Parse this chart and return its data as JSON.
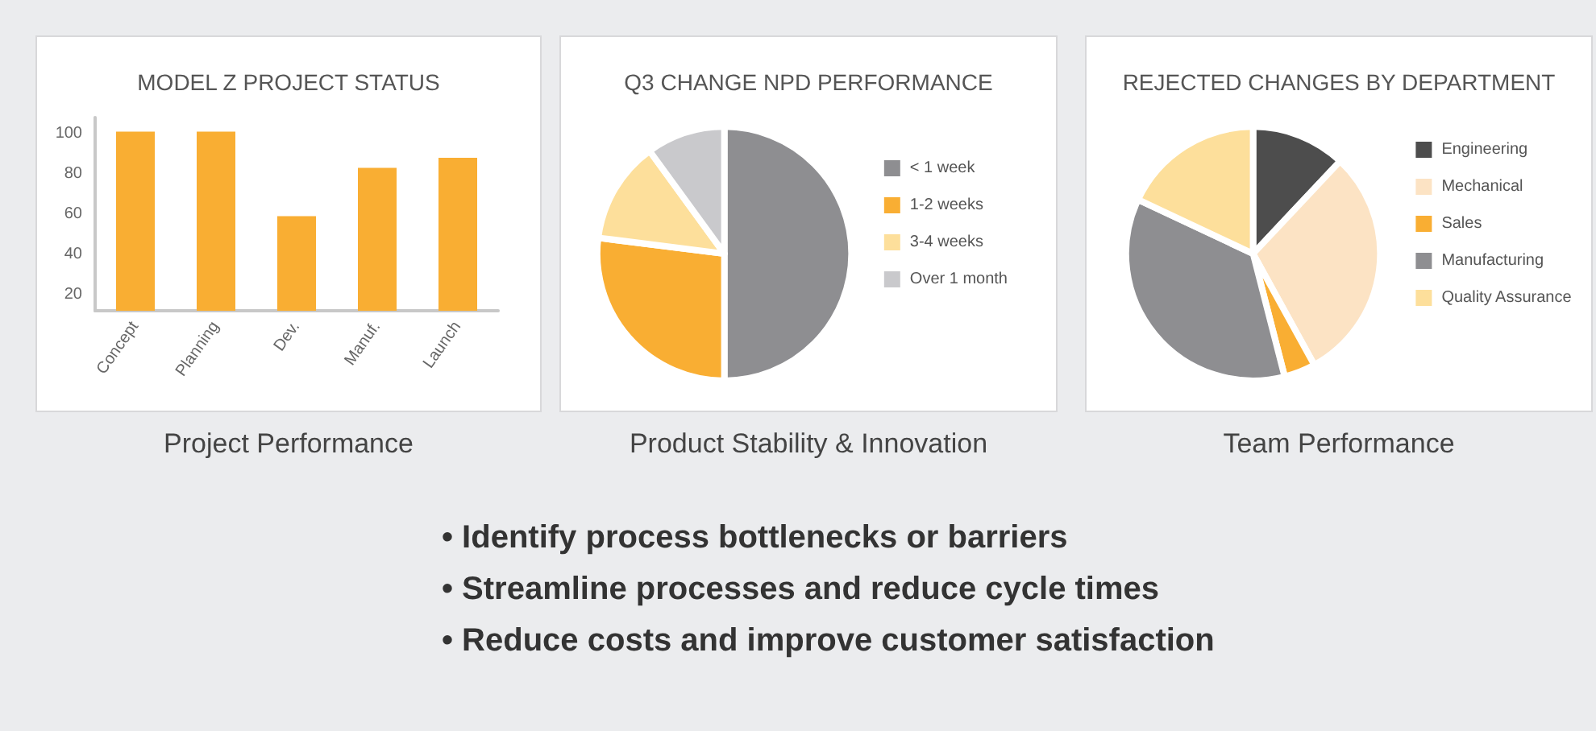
{
  "chart_data": [
    {
      "type": "bar",
      "title": "MODEL Z PROJECT STATUS",
      "categories": [
        "Concept",
        "Planning",
        "Dev.",
        "Manuf.",
        "Launch"
      ],
      "values": [
        101,
        101,
        59,
        83,
        88
      ],
      "color": "#f9ae33",
      "ylim": [
        12,
        108
      ],
      "yticks": [
        20,
        40,
        60,
        80,
        100
      ],
      "grid": false,
      "annotations": [
        "Project Performance"
      ]
    },
    {
      "type": "pie",
      "title": "Q3 CHANGE NPD PERFORMANCE",
      "categories": [
        "< 1 week",
        "1-2 weeks",
        "3-4 weeks",
        "Over 1 month"
      ],
      "values": [
        50,
        27,
        13,
        10
      ],
      "colors": [
        "#8e8e91",
        "#f9ae33",
        "#fddf9b",
        "#c9c9cc"
      ],
      "legend": "right",
      "annotations": [
        "Product Stability & Innovation"
      ]
    },
    {
      "type": "pie",
      "title": "REJECTED CHANGES BY DEPARTMENT",
      "categories": [
        "Engineering",
        "Mechanical",
        "Sales",
        "Manufacturing",
        "Quality Assurance"
      ],
      "values": [
        12,
        30,
        4,
        36,
        18
      ],
      "colors": [
        "#4d4d4d",
        "#fce3c4",
        "#f9ae33",
        "#8e8e91",
        "#fddf9b"
      ],
      "legend": "right",
      "annotations": [
        "Team Performance"
      ]
    },
    {
      "type": "other",
      "annotations": [
        "• Identify process bottlenecks or barriers",
        "• Streamline processes and reduce cycle times",
        "• Reduce costs and improve customer satisfaction"
      ]
    }
  ]
}
